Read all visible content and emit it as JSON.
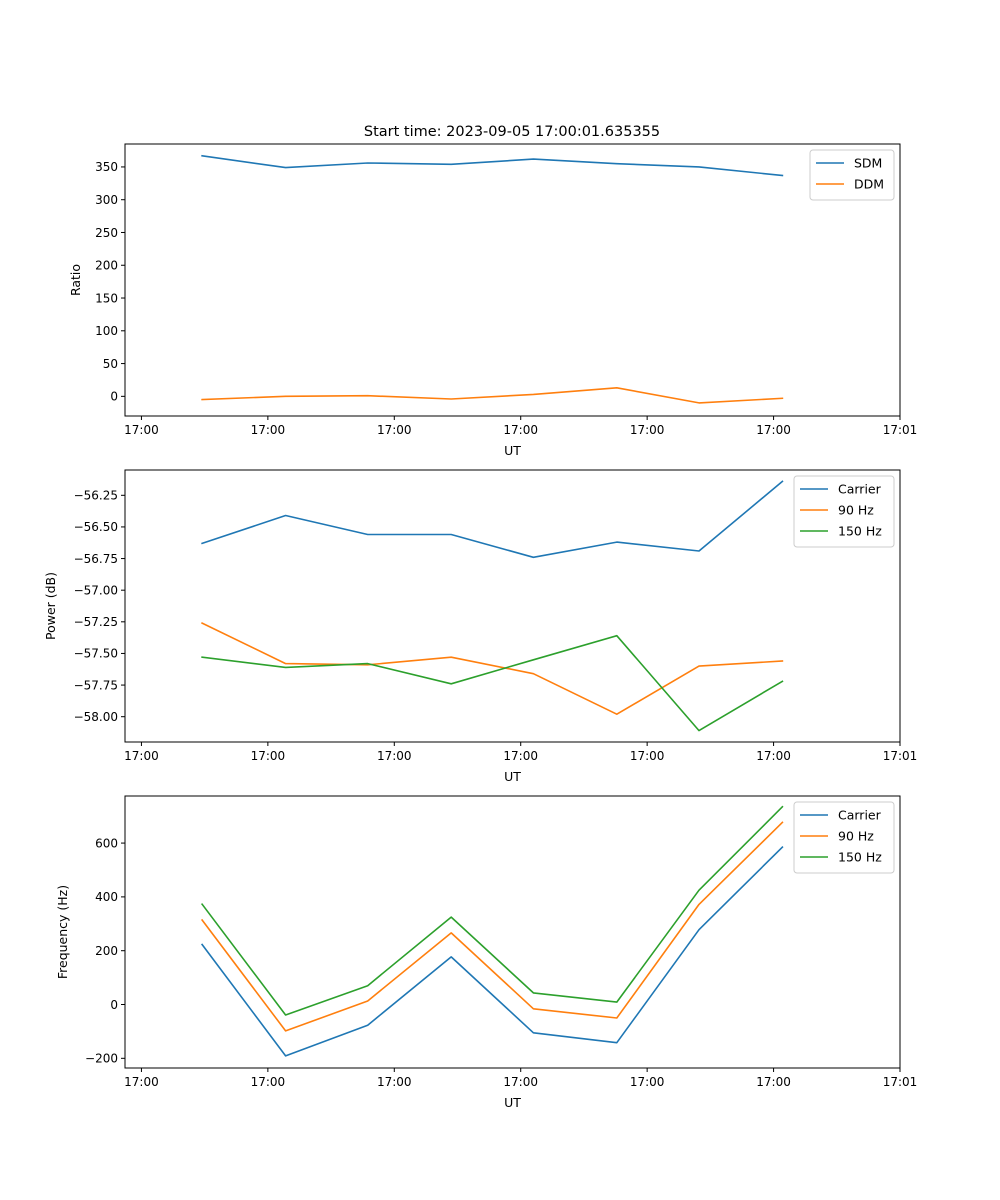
{
  "figure": {
    "title": "Start time: 2023-09-05 17:00:01.635355"
  },
  "chart_data": [
    {
      "type": "line",
      "title": "Start time: 2023-09-05 17:00:01.635355",
      "xlabel": "UT",
      "ylabel": "Ratio",
      "x_tick_labels": [
        "17:00",
        "17:00",
        "17:00",
        "17:00",
        "17:00",
        "17:00",
        "17:01"
      ],
      "x_tick_positions": [
        0,
        1,
        2,
        3,
        4,
        5,
        6
      ],
      "xlim": [
        -0.13,
        6.0
      ],
      "ylim": [
        -30,
        385
      ],
      "yticks": [
        0,
        50,
        100,
        150,
        200,
        250,
        300,
        350
      ],
      "legend": "top-right",
      "x": [
        0.48,
        1.14,
        1.79,
        2.45,
        3.1,
        3.76,
        4.41,
        5.07
      ],
      "series": [
        {
          "name": "SDM",
          "color": "#1f77b4",
          "values": [
            367,
            349,
            356,
            354,
            362,
            355,
            350,
            337
          ]
        },
        {
          "name": "DDM",
          "color": "#ff7f0e",
          "values": [
            -5,
            0,
            1,
            -4,
            3,
            13,
            -10,
            -3
          ]
        }
      ]
    },
    {
      "type": "line",
      "title": "",
      "xlabel": "UT",
      "ylabel": "Power (dB)",
      "x_tick_labels": [
        "17:00",
        "17:00",
        "17:00",
        "17:00",
        "17:00",
        "17:00",
        "17:01"
      ],
      "x_tick_positions": [
        0,
        1,
        2,
        3,
        4,
        5,
        6
      ],
      "xlim": [
        -0.13,
        6.0
      ],
      "ylim": [
        -58.2,
        -56.05
      ],
      "yticks": [
        -58.0,
        -57.75,
        -57.5,
        -57.25,
        -57.0,
        -56.75,
        -56.5,
        -56.25
      ],
      "ytick_labels": [
        "−58.00",
        "−57.75",
        "−57.50",
        "−57.25",
        "−57.00",
        "−56.75",
        "−56.50",
        "−56.25"
      ],
      "legend": "top-right",
      "x": [
        0.48,
        1.14,
        1.79,
        2.45,
        3.1,
        3.76,
        4.41,
        5.07
      ],
      "series": [
        {
          "name": "Carrier",
          "color": "#1f77b4",
          "values": [
            -56.63,
            -56.41,
            -56.56,
            -56.56,
            -56.74,
            -56.62,
            -56.69,
            -56.14
          ]
        },
        {
          "name": "90 Hz",
          "color": "#ff7f0e",
          "values": [
            -57.26,
            -57.58,
            -57.59,
            -57.53,
            -57.66,
            -57.98,
            -57.6,
            -57.56
          ]
        },
        {
          "name": "150 Hz",
          "color": "#2ca02c",
          "values": [
            -57.53,
            -57.61,
            -57.58,
            -57.74,
            -57.55,
            -57.36,
            -58.11,
            -57.72
          ]
        }
      ]
    },
    {
      "type": "line",
      "title": "",
      "xlabel": "UT",
      "ylabel": "Frequency (Hz)",
      "x_tick_labels": [
        "17:00",
        "17:00",
        "17:00",
        "17:00",
        "17:00",
        "17:00",
        "17:01"
      ],
      "x_tick_positions": [
        0,
        1,
        2,
        3,
        4,
        5,
        6
      ],
      "xlim": [
        -0.13,
        6.0
      ],
      "ylim": [
        -236,
        775
      ],
      "yticks": [
        -200,
        0,
        200,
        400,
        600
      ],
      "ytick_labels": [
        "−200",
        "0",
        "200",
        "400",
        "600"
      ],
      "legend": "top-right",
      "x": [
        0.48,
        1.14,
        1.79,
        2.45,
        3.1,
        3.76,
        4.41,
        5.07
      ],
      "series": [
        {
          "name": "Carrier",
          "color": "#1f77b4",
          "values": [
            223,
            -191,
            -77,
            177,
            -105,
            -142,
            278,
            585
          ]
        },
        {
          "name": "90 Hz",
          "color": "#ff7f0e",
          "values": [
            314,
            -98,
            13,
            266,
            -16,
            -50,
            372,
            677
          ]
        },
        {
          "name": "150 Hz",
          "color": "#2ca02c",
          "values": [
            373,
            -39,
            70,
            325,
            43,
            9,
            425,
            735
          ]
        }
      ]
    }
  ]
}
